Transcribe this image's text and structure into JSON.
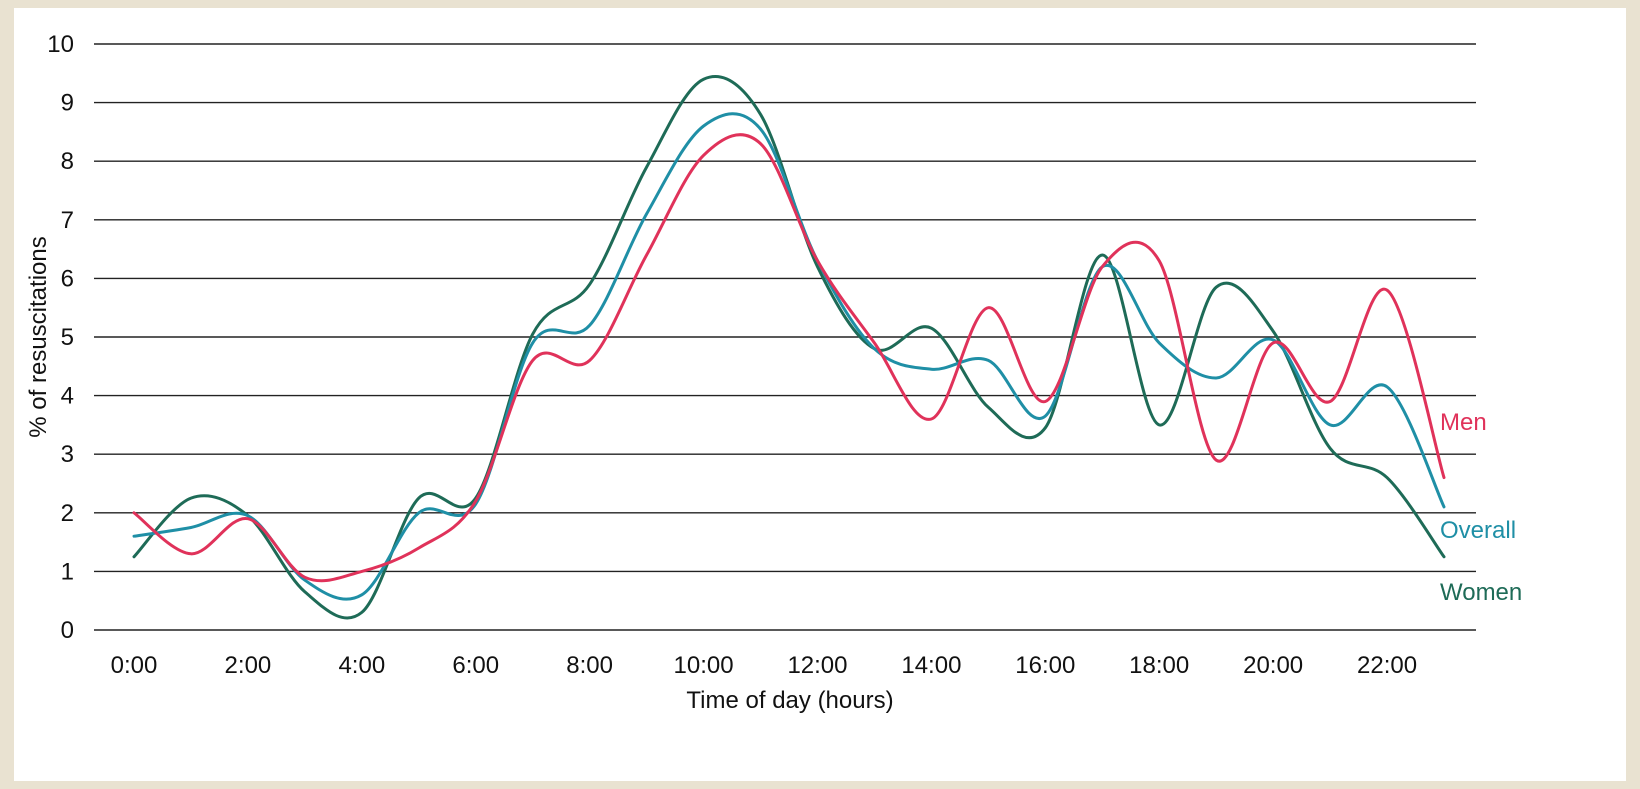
{
  "chart_data": {
    "type": "line",
    "title": "",
    "xlabel": "Time of day (hours)",
    "ylabel": "% of resuscitations",
    "xlim": [
      0,
      23
    ],
    "ylim": [
      0,
      10
    ],
    "grid": "horizontal",
    "x_ticks": [
      "0:00",
      "2:00",
      "4:00",
      "6:00",
      "8:00",
      "10:00",
      "12:00",
      "14:00",
      "16:00",
      "18:00",
      "20:00",
      "22:00"
    ],
    "y_ticks": [
      "0",
      "1",
      "2",
      "3",
      "4",
      "5",
      "6",
      "7",
      "8",
      "9",
      "10"
    ],
    "x": [
      0,
      1,
      2,
      3,
      4,
      5,
      6,
      7,
      8,
      9,
      10,
      11,
      12,
      13,
      14,
      15,
      16,
      17,
      18,
      19,
      20,
      21,
      22,
      23
    ],
    "series": [
      {
        "name": "Men",
        "color": "#e0325a",
        "values": [
          2.0,
          1.3,
          1.9,
          0.9,
          1.0,
          1.4,
          2.2,
          4.6,
          4.6,
          6.4,
          8.1,
          8.3,
          6.3,
          4.9,
          3.6,
          5.5,
          3.9,
          6.2,
          6.3,
          2.9,
          4.9,
          3.9,
          5.8,
          2.6
        ]
      },
      {
        "name": "Overall",
        "color": "#1f8fa6",
        "values": [
          1.6,
          1.75,
          1.95,
          0.85,
          0.6,
          2.0,
          2.15,
          4.9,
          5.2,
          7.1,
          8.6,
          8.55,
          6.3,
          4.8,
          4.45,
          4.6,
          3.65,
          6.2,
          4.9,
          4.3,
          4.95,
          3.5,
          4.15,
          2.1
        ]
      },
      {
        "name": "Women",
        "color": "#1e6b57",
        "values": [
          1.25,
          2.25,
          1.95,
          0.65,
          0.3,
          2.25,
          2.25,
          5.05,
          5.9,
          7.9,
          9.4,
          8.8,
          6.2,
          4.8,
          5.15,
          3.8,
          3.45,
          6.4,
          3.5,
          5.85,
          5.1,
          3.1,
          2.6,
          1.25
        ]
      }
    ],
    "legend": "right"
  }
}
